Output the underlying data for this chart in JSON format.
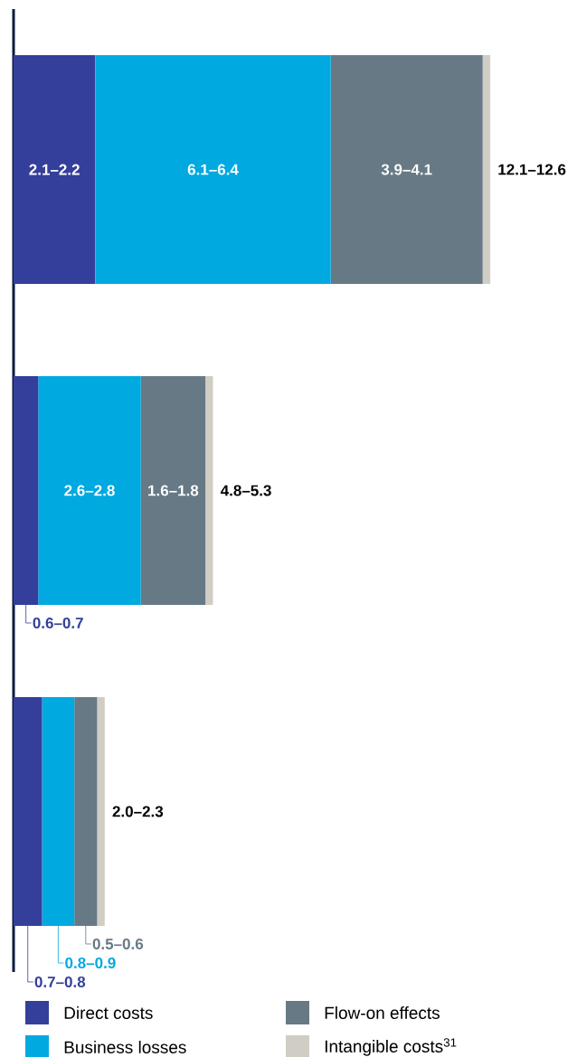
{
  "chart_data": {
    "type": "bar",
    "orientation": "horizontal",
    "stacked": true,
    "categories": [
      null,
      null,
      null
    ],
    "series": [
      {
        "name": "Direct costs",
        "color": "#343f9b",
        "values": [
          2.15,
          0.65,
          0.75
        ],
        "value_labels": [
          "2.1–2.2",
          "0.6–0.7",
          "0.7–0.8"
        ]
      },
      {
        "name": "Business losses",
        "color": "#00a9e0",
        "values": [
          6.2,
          2.7,
          0.85
        ],
        "value_labels": [
          "6.1–6.4",
          "2.6–2.8",
          "0.8–0.9"
        ]
      },
      {
        "name": "Flow-on effects",
        "color": "#667985",
        "values": [
          4.0,
          1.7,
          0.6
        ],
        "value_labels": [
          "3.9–4.1",
          "1.6–1.8",
          "0.5–0.6"
        ]
      },
      {
        "name": "Intangible costs$^{31}$",
        "color": "#d0cdc4",
        "values": [
          0.2,
          0.2,
          0.2
        ]
      }
    ],
    "totals": [
      "12.1–12.6",
      "4.8–5.3",
      "2.0–2.3"
    ],
    "legend": "bottom"
  }
}
